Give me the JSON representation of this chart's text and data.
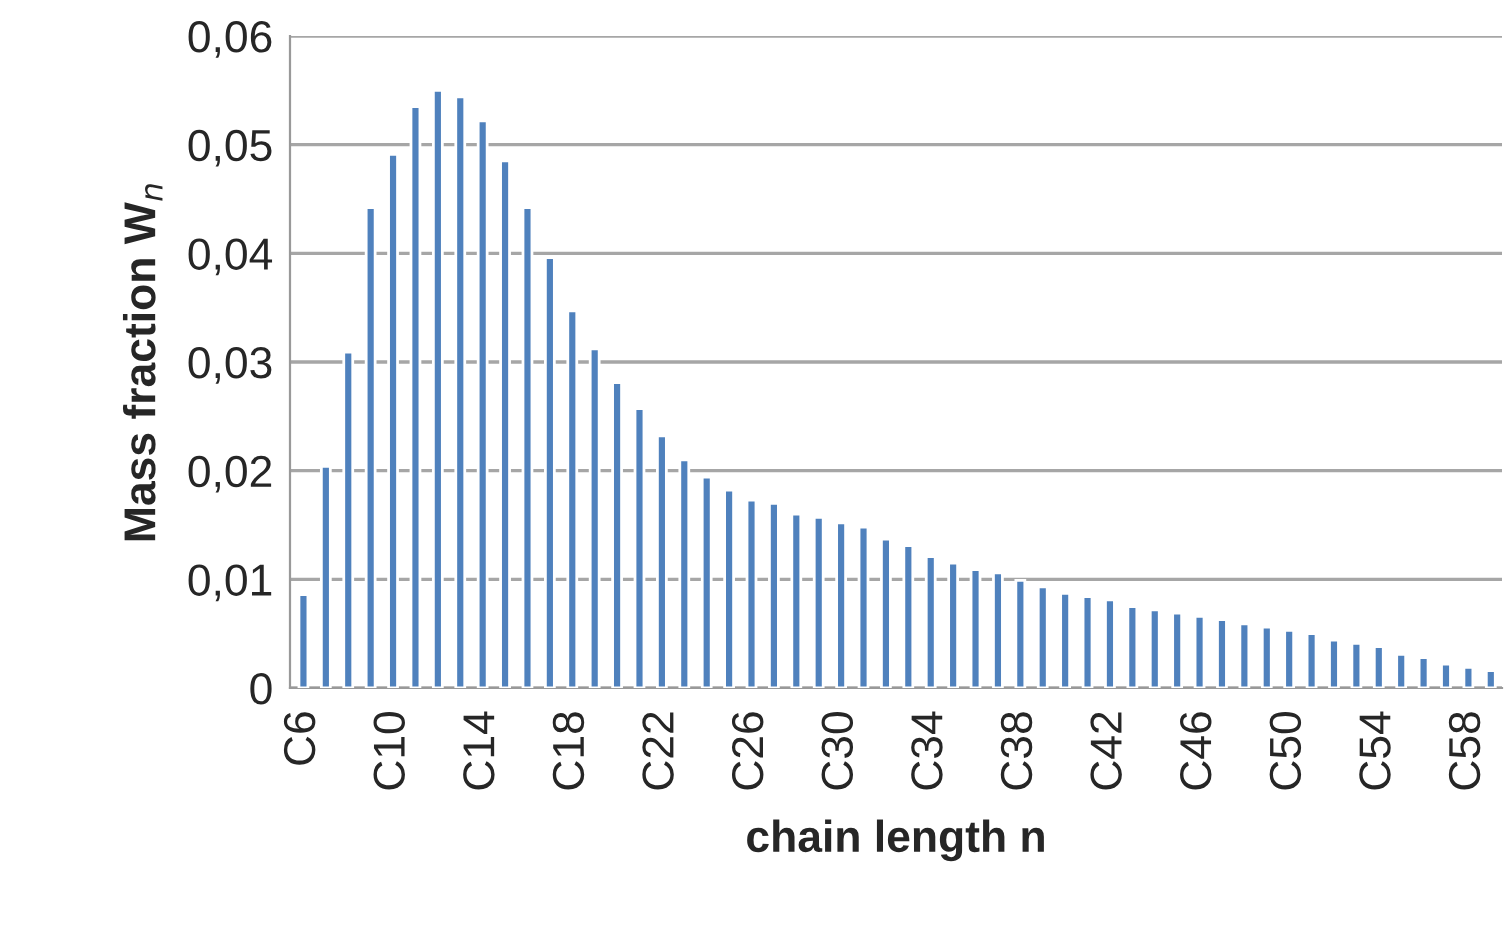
{
  "chart_data": {
    "type": "bar",
    "xlabel": "chain length n",
    "ylabel": "Mass fraction W$_{n}$",
    "categories": [
      "C6",
      null,
      null,
      null,
      "C10",
      null,
      null,
      null,
      "C14",
      null,
      null,
      null,
      "C18",
      null,
      null,
      null,
      "C22",
      null,
      null,
      null,
      "C26",
      null,
      null,
      null,
      "C30",
      null,
      null,
      null,
      "C34",
      null,
      null,
      null,
      "C38",
      null,
      null,
      null,
      "C42",
      null,
      null,
      null,
      "C46",
      null,
      null,
      null,
      "C50",
      null,
      null,
      null,
      "C54",
      null,
      null,
      null,
      "C58",
      null
    ],
    "values": [
      0.0086,
      0.0204,
      0.0309,
      0.0442,
      0.0491,
      0.0535,
      0.055,
      0.0544,
      0.0522,
      0.0485,
      0.0442,
      0.0396,
      0.0347,
      0.0312,
      0.0281,
      0.0257,
      0.0232,
      0.021,
      0.0194,
      0.0182,
      0.0173,
      0.017,
      0.016,
      0.0157,
      0.0152,
      0.0148,
      0.0137,
      0.0131,
      0.0121,
      0.0115,
      0.0109,
      0.0106,
      0.0099,
      0.0093,
      0.0087,
      0.0084,
      0.0081,
      0.0075,
      0.0072,
      0.0069,
      0.0066,
      0.0063,
      0.0059,
      0.0056,
      0.0053,
      0.005,
      0.0044,
      0.0041,
      0.0038,
      0.0031,
      0.0028,
      0.0022,
      0.0019,
      0.0016
    ],
    "color": "#4f81bd",
    "ylim": [
      0,
      0.06
    ],
    "yticks": [
      {
        "value": 0,
        "label": "0"
      },
      {
        "value": 0.01,
        "label": "0,01"
      },
      {
        "value": 0.02,
        "label": "0,02"
      },
      {
        "value": 0.03,
        "label": "0,03"
      },
      {
        "value": 0.04,
        "label": "0,04"
      },
      {
        "value": 0.05,
        "label": "0,05"
      },
      {
        "value": 0.06,
        "label": "0,06"
      }
    ],
    "grid": "y"
  }
}
